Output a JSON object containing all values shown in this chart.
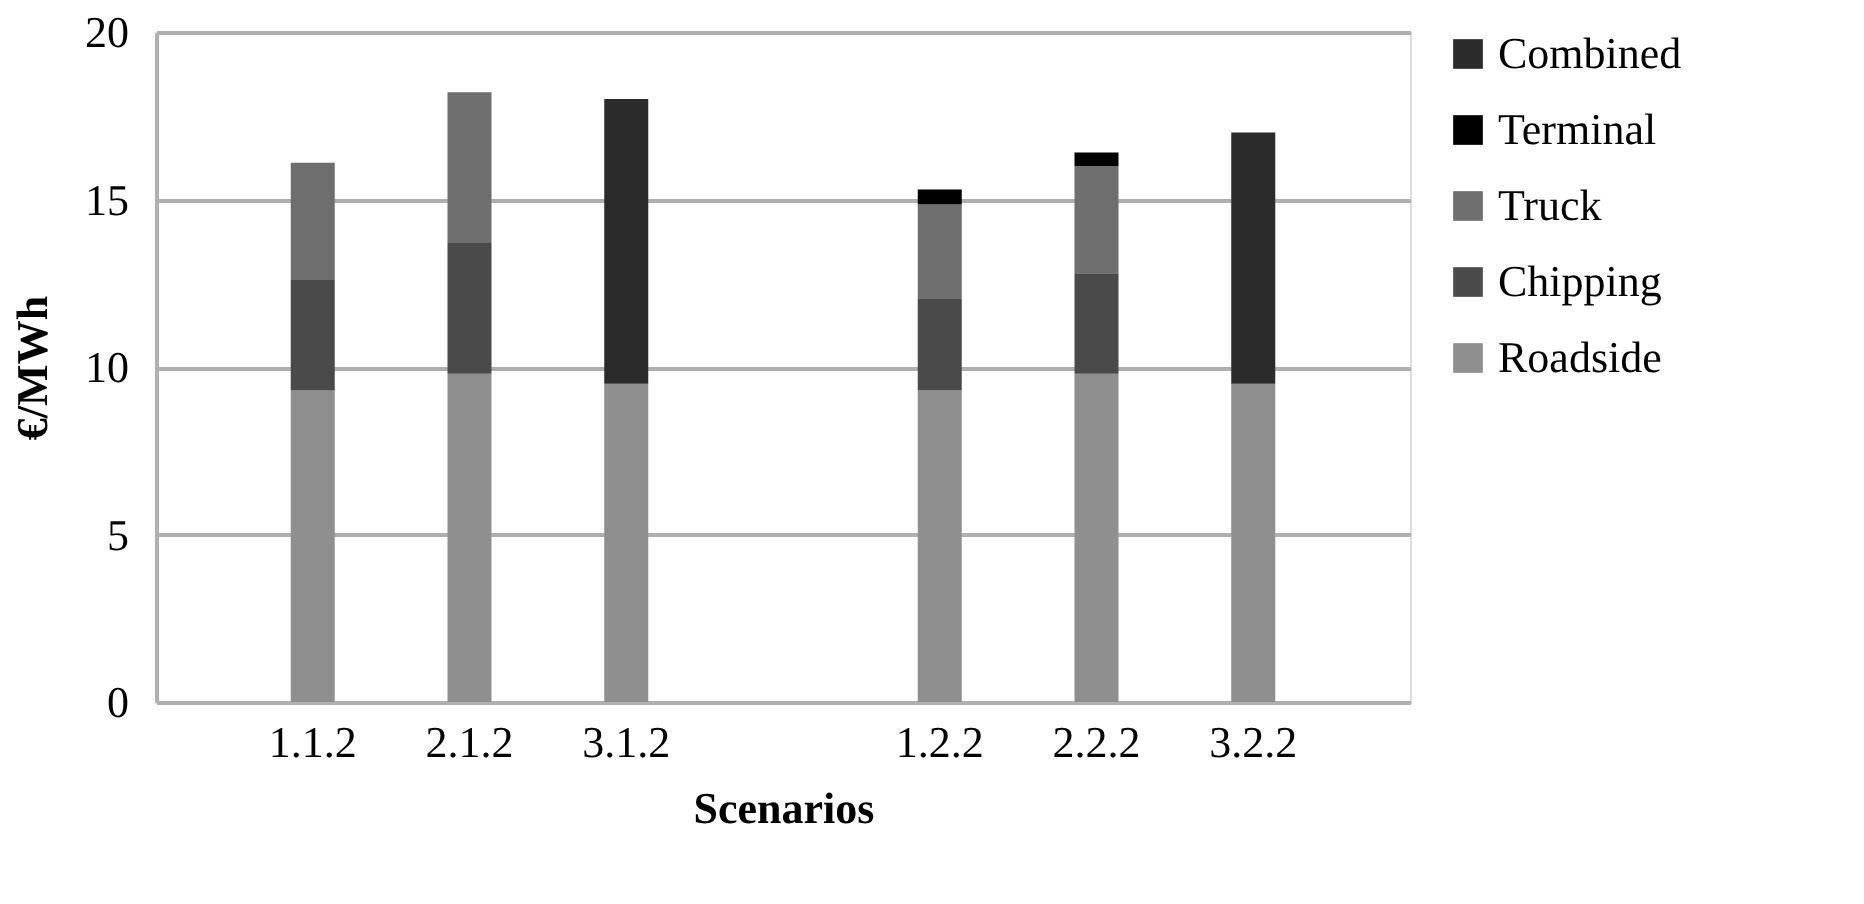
{
  "chart_data": {
    "type": "bar",
    "stacked": true,
    "xlabel": "Scenarios",
    "ylabel": "€/MWh",
    "categories": [
      "1.1.2",
      "2.1.2",
      "3.1.2",
      null,
      "1.2.2",
      "2.2.2",
      "3.2.2"
    ],
    "series": [
      {
        "name": "Roadside",
        "color": "#8f8f8f",
        "values": [
          9.3,
          9.8,
          9.5,
          null,
          9.3,
          9.8,
          9.5
        ]
      },
      {
        "name": "Chipping",
        "color": "#4a4a4a",
        "values": [
          3.3,
          3.9,
          null,
          null,
          2.75,
          3.0,
          null
        ]
      },
      {
        "name": "Truck",
        "color": "#6e6e6e",
        "values": [
          3.5,
          4.5,
          null,
          null,
          2.8,
          3.2,
          null
        ]
      },
      {
        "name": "Terminal",
        "color": "#000000",
        "values": [
          null,
          null,
          null,
          null,
          0.45,
          0.4,
          null
        ]
      },
      {
        "name": "Combined",
        "color": "#2b2b2b",
        "values": [
          null,
          null,
          8.5,
          null,
          null,
          null,
          7.5
        ]
      }
    ],
    "ylim": [
      0,
      20
    ],
    "yticks": [
      0,
      5,
      10,
      15,
      20
    ],
    "grid": "y",
    "legend": "right"
  }
}
